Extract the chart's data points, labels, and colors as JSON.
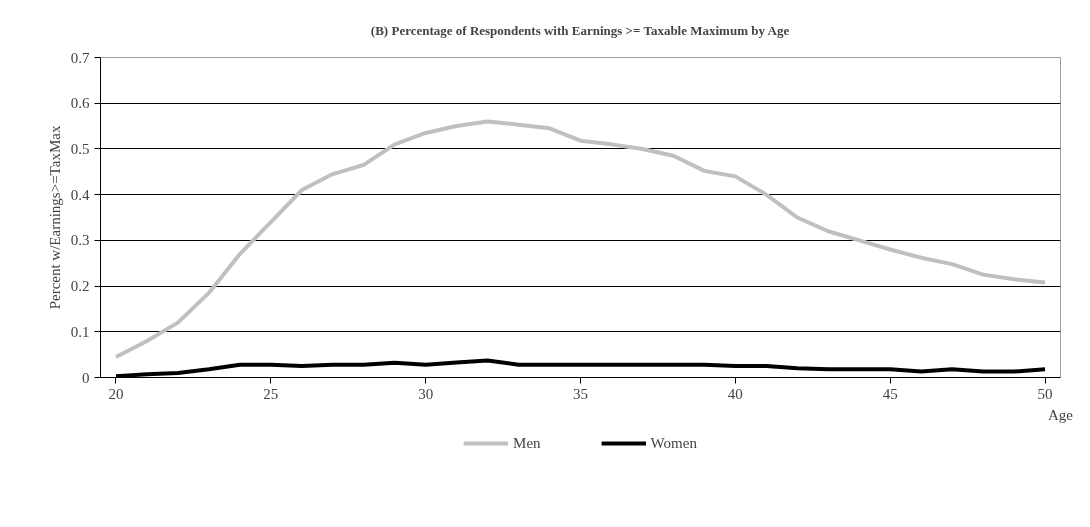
{
  "chart_data": {
    "type": "line",
    "title": "(B) Percentage of Respondents with Earnings >= Taxable Maximum by Age",
    "xlabel": "Age",
    "ylabel": "Percent w/Earnings>=TaxMax",
    "x": [
      20,
      21,
      22,
      23,
      24,
      25,
      26,
      27,
      28,
      29,
      30,
      31,
      32,
      33,
      34,
      35,
      36,
      37,
      38,
      39,
      40,
      41,
      42,
      43,
      44,
      45,
      46,
      47,
      48,
      49,
      50
    ],
    "series": [
      {
        "name": "Men",
        "color": "#c0c0c0",
        "values": [
          0.045,
          0.08,
          0.12,
          0.185,
          0.27,
          0.34,
          0.41,
          0.445,
          0.465,
          0.51,
          0.535,
          0.55,
          0.56,
          0.553,
          0.545,
          0.518,
          0.51,
          0.5,
          0.485,
          0.452,
          0.44,
          0.4,
          0.35,
          0.32,
          0.3,
          0.28,
          0.262,
          0.248,
          0.225,
          0.215,
          0.208
        ]
      },
      {
        "name": "Women",
        "color": "#000000",
        "values": [
          0.003,
          0.007,
          0.01,
          0.018,
          0.028,
          0.028,
          0.025,
          0.028,
          0.028,
          0.032,
          0.028,
          0.033,
          0.037,
          0.028,
          0.028,
          0.028,
          0.028,
          0.028,
          0.028,
          0.028,
          0.025,
          0.025,
          0.02,
          0.018,
          0.018,
          0.018,
          0.013,
          0.018,
          0.013,
          0.013,
          0.018
        ]
      }
    ],
    "xlim": [
      19.5,
      50.5
    ],
    "xticks": [
      20,
      25,
      30,
      35,
      40,
      45,
      50
    ],
    "ylim": [
      0,
      0.7
    ],
    "yticks": [
      0,
      0.1,
      0.2,
      0.3,
      0.4,
      0.5,
      0.6,
      0.7
    ],
    "grid": "y",
    "legend": "bottom",
    "marker": "none",
    "line_style": "solid"
  }
}
